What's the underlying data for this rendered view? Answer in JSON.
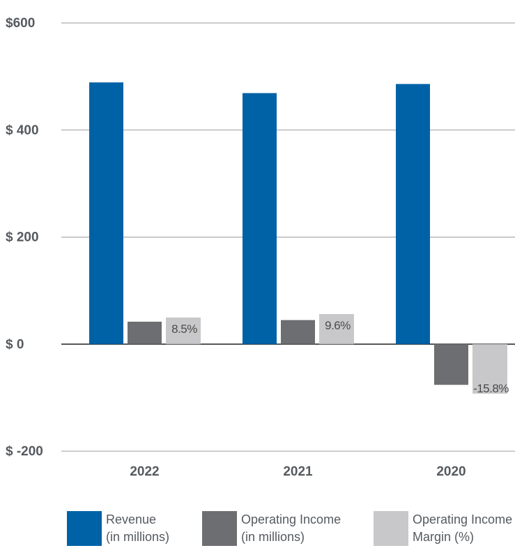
{
  "chart_data": {
    "type": "bar",
    "categories": [
      "2022",
      "2021",
      "2020"
    ],
    "ylim": [
      -200,
      600
    ],
    "yticks": [
      {
        "value": 600,
        "label": "$600"
      },
      {
        "value": 400,
        "label": "$ 400"
      },
      {
        "value": 200,
        "label": "$ 200"
      },
      {
        "value": 0,
        "label": "$ 0"
      },
      {
        "value": -200,
        "label": "$ -200"
      }
    ],
    "series": [
      {
        "name": "Revenue (in millions)",
        "legend_lines": [
          "Revenue",
          "(in millions)"
        ],
        "color": "#0062a6",
        "values": [
          489,
          469,
          486
        ]
      },
      {
        "name": "Operating Income (in millions)",
        "legend_lines": [
          "Operating Income",
          "(in millions)"
        ],
        "color": "#6d6e71",
        "values": [
          42,
          45,
          -76
        ]
      },
      {
        "name": "Operating Income Margin (%)",
        "legend_lines": [
          "Operating Income",
          "Margin (%)"
        ],
        "color": "#c8c8ca",
        "values": [
          8.5,
          9.6,
          -15.8
        ],
        "data_labels": [
          "8.5%",
          "9.6%",
          "-15.8%"
        ]
      }
    ],
    "grid": true,
    "legend_position": "bottom"
  }
}
